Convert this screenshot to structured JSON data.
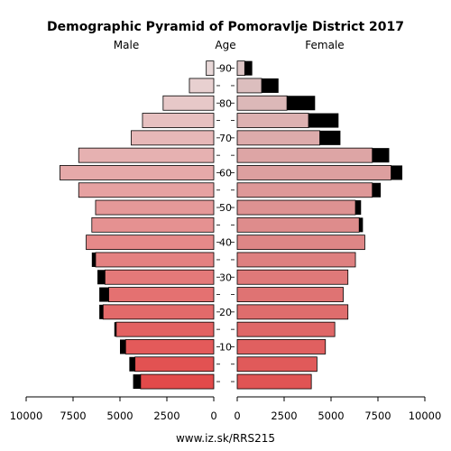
{
  "chart_data": {
    "type": "bar",
    "title": "Demographic Pyramid of Pomoravlje District 2017",
    "left_label": "Male",
    "center_label": "Age",
    "right_label": "Female",
    "footer": "www.iz.sk/RRS215",
    "age_ticks": [
      10,
      20,
      30,
      40,
      50,
      60,
      70,
      80,
      90
    ],
    "x_ticks_male": [
      "10000",
      "7500",
      "5000",
      "2500",
      "0"
    ],
    "x_ticks_female": [
      "0",
      "2500",
      "5000",
      "7500",
      "10000"
    ],
    "xlim": [
      0,
      10000
    ],
    "age_groups": [
      "0-4",
      "5-9",
      "10-14",
      "15-19",
      "20-24",
      "25-29",
      "30-34",
      "35-39",
      "40-44",
      "45-49",
      "50-54",
      "55-59",
      "60-64",
      "65-69",
      "70-74",
      "75-79",
      "80-84",
      "85-89",
      "90+"
    ],
    "series": [
      {
        "name": "Male",
        "values": [
          3900,
          4200,
          4700,
          5200,
          5900,
          5600,
          5800,
          6300,
          6800,
          6500,
          6300,
          7200,
          8200,
          7200,
          4400,
          3800,
          2700,
          1300,
          400
        ],
        "excess": [
          400,
          300,
          300,
          100,
          200,
          500,
          400,
          200,
          0,
          0,
          0,
          0,
          0,
          0,
          0,
          0,
          0,
          0,
          0
        ]
      },
      {
        "name": "Female",
        "values": [
          3950,
          4250,
          4700,
          5200,
          5900,
          5650,
          5900,
          6300,
          6800,
          6500,
          6300,
          7200,
          8200,
          7200,
          4400,
          3800,
          2650,
          1300,
          400
        ],
        "excess": [
          0,
          0,
          0,
          0,
          0,
          0,
          0,
          0,
          0,
          200,
          300,
          450,
          600,
          900,
          1100,
          1600,
          1500,
          900,
          400
        ]
      }
    ]
  }
}
